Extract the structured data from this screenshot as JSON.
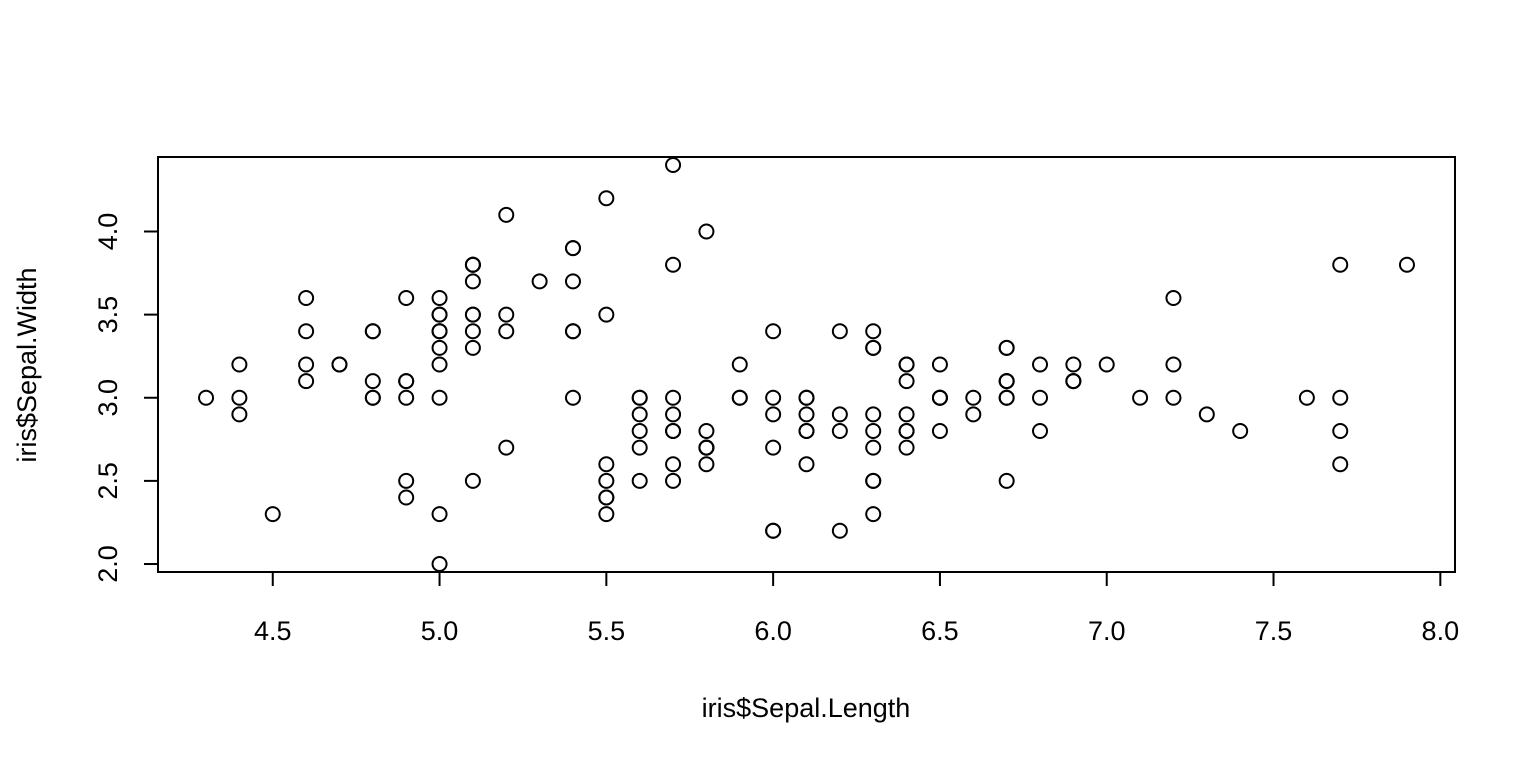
{
  "chart_data": {
    "type": "scatter",
    "title": "",
    "xlabel": "iris$Sepal.Length",
    "ylabel": "iris$Sepal.Width",
    "xlim": [
      4.156,
      8.044
    ],
    "ylim": [
      1.952,
      4.448
    ],
    "x_ticks": [
      4.5,
      5.0,
      5.5,
      6.0,
      6.5,
      7.0,
      7.5,
      8.0
    ],
    "x_tick_labels": [
      "4.5",
      "5.0",
      "5.5",
      "6.0",
      "6.5",
      "7.0",
      "7.5",
      "8.0"
    ],
    "y_ticks": [
      2.0,
      2.5,
      3.0,
      3.5,
      4.0
    ],
    "y_tick_labels": [
      "2.0",
      "2.5",
      "3.0",
      "3.5",
      "4.0"
    ],
    "grid": false,
    "marker": "open-circle",
    "color": "#000000",
    "points": [
      [
        5.1,
        3.5
      ],
      [
        4.9,
        3.0
      ],
      [
        4.7,
        3.2
      ],
      [
        4.6,
        3.1
      ],
      [
        5.0,
        3.6
      ],
      [
        5.4,
        3.9
      ],
      [
        4.6,
        3.4
      ],
      [
        5.0,
        3.4
      ],
      [
        4.4,
        2.9
      ],
      [
        4.9,
        3.1
      ],
      [
        5.4,
        3.7
      ],
      [
        4.8,
        3.4
      ],
      [
        4.8,
        3.0
      ],
      [
        4.3,
        3.0
      ],
      [
        5.8,
        4.0
      ],
      [
        5.7,
        4.4
      ],
      [
        5.4,
        3.9
      ],
      [
        5.1,
        3.5
      ],
      [
        5.7,
        3.8
      ],
      [
        5.1,
        3.8
      ],
      [
        5.4,
        3.4
      ],
      [
        5.1,
        3.7
      ],
      [
        4.6,
        3.6
      ],
      [
        5.1,
        3.3
      ],
      [
        4.8,
        3.4
      ],
      [
        5.0,
        3.0
      ],
      [
        5.0,
        3.4
      ],
      [
        5.2,
        3.5
      ],
      [
        5.2,
        3.4
      ],
      [
        4.7,
        3.2
      ],
      [
        4.8,
        3.1
      ],
      [
        5.4,
        3.4
      ],
      [
        5.2,
        4.1
      ],
      [
        5.5,
        4.2
      ],
      [
        4.9,
        3.1
      ],
      [
        5.0,
        3.2
      ],
      [
        5.5,
        3.5
      ],
      [
        4.9,
        3.6
      ],
      [
        4.4,
        3.0
      ],
      [
        5.1,
        3.4
      ],
      [
        5.0,
        3.5
      ],
      [
        4.5,
        2.3
      ],
      [
        4.4,
        3.2
      ],
      [
        5.0,
        3.5
      ],
      [
        5.1,
        3.8
      ],
      [
        4.8,
        3.0
      ],
      [
        5.1,
        3.8
      ],
      [
        4.6,
        3.2
      ],
      [
        5.3,
        3.7
      ],
      [
        5.0,
        3.3
      ],
      [
        7.0,
        3.2
      ],
      [
        6.4,
        3.2
      ],
      [
        6.9,
        3.1
      ],
      [
        5.5,
        2.3
      ],
      [
        6.5,
        2.8
      ],
      [
        5.7,
        2.8
      ],
      [
        6.3,
        3.3
      ],
      [
        4.9,
        2.4
      ],
      [
        6.6,
        2.9
      ],
      [
        5.2,
        2.7
      ],
      [
        5.0,
        2.0
      ],
      [
        5.9,
        3.0
      ],
      [
        6.0,
        2.2
      ],
      [
        6.1,
        2.9
      ],
      [
        5.6,
        2.9
      ],
      [
        6.7,
        3.1
      ],
      [
        5.6,
        3.0
      ],
      [
        5.8,
        2.7
      ],
      [
        6.2,
        2.2
      ],
      [
        5.6,
        2.5
      ],
      [
        5.9,
        3.2
      ],
      [
        6.1,
        2.8
      ],
      [
        6.3,
        2.5
      ],
      [
        6.1,
        2.8
      ],
      [
        6.4,
        2.9
      ],
      [
        6.6,
        3.0
      ],
      [
        6.8,
        2.8
      ],
      [
        6.7,
        3.0
      ],
      [
        6.0,
        2.9
      ],
      [
        5.7,
        2.6
      ],
      [
        5.5,
        2.4
      ],
      [
        5.5,
        2.4
      ],
      [
        5.8,
        2.7
      ],
      [
        6.0,
        2.7
      ],
      [
        5.4,
        3.0
      ],
      [
        6.0,
        3.4
      ],
      [
        6.7,
        3.1
      ],
      [
        6.3,
        2.3
      ],
      [
        5.6,
        3.0
      ],
      [
        5.5,
        2.5
      ],
      [
        5.5,
        2.6
      ],
      [
        6.1,
        3.0
      ],
      [
        5.8,
        2.6
      ],
      [
        5.0,
        2.3
      ],
      [
        5.6,
        2.7
      ],
      [
        5.7,
        3.0
      ],
      [
        5.7,
        2.9
      ],
      [
        6.2,
        2.9
      ],
      [
        5.1,
        2.5
      ],
      [
        5.7,
        2.8
      ],
      [
        6.3,
        3.3
      ],
      [
        5.8,
        2.7
      ],
      [
        7.1,
        3.0
      ],
      [
        6.3,
        2.9
      ],
      [
        6.5,
        3.0
      ],
      [
        7.6,
        3.0
      ],
      [
        4.9,
        2.5
      ],
      [
        7.3,
        2.9
      ],
      [
        6.7,
        2.5
      ],
      [
        7.2,
        3.6
      ],
      [
        6.5,
        3.2
      ],
      [
        6.4,
        2.7
      ],
      [
        6.8,
        3.0
      ],
      [
        5.7,
        2.5
      ],
      [
        5.8,
        2.8
      ],
      [
        6.4,
        3.2
      ],
      [
        6.5,
        3.0
      ],
      [
        7.7,
        3.8
      ],
      [
        7.7,
        2.6
      ],
      [
        6.0,
        2.2
      ],
      [
        6.9,
        3.2
      ],
      [
        5.6,
        2.8
      ],
      [
        7.7,
        2.8
      ],
      [
        6.3,
        2.7
      ],
      [
        6.7,
        3.3
      ],
      [
        7.2,
        3.2
      ],
      [
        6.2,
        2.8
      ],
      [
        6.1,
        3.0
      ],
      [
        6.4,
        2.8
      ],
      [
        7.2,
        3.0
      ],
      [
        7.4,
        2.8
      ],
      [
        7.9,
        3.8
      ],
      [
        6.4,
        2.8
      ],
      [
        6.3,
        2.8
      ],
      [
        6.1,
        2.6
      ],
      [
        7.7,
        3.0
      ],
      [
        6.3,
        3.4
      ],
      [
        6.4,
        3.1
      ],
      [
        6.0,
        3.0
      ],
      [
        6.9,
        3.1
      ],
      [
        6.7,
        3.1
      ],
      [
        6.9,
        3.1
      ],
      [
        5.8,
        2.7
      ],
      [
        6.8,
        3.2
      ],
      [
        6.7,
        3.3
      ],
      [
        6.7,
        3.0
      ],
      [
        6.3,
        2.5
      ],
      [
        6.5,
        3.0
      ],
      [
        6.2,
        3.4
      ],
      [
        5.9,
        3.0
      ]
    ]
  }
}
